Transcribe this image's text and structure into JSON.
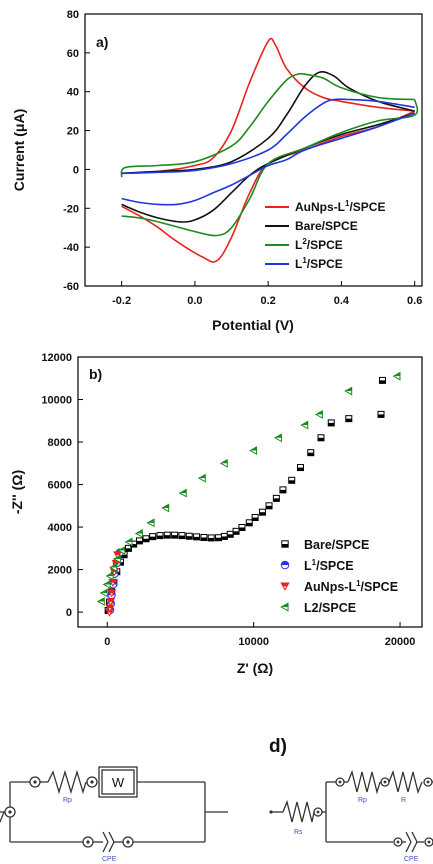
{
  "chart_data": [
    {
      "type": "line",
      "panel_label": "a)",
      "xlabel": "Potential (V)",
      "ylabel": "Current (μA)",
      "xlim": [
        -0.3,
        0.62
      ],
      "ylim": [
        -60,
        80
      ],
      "xticks": [
        "-0.2",
        "0.0",
        "0.2",
        "0.4",
        "0.6"
      ],
      "xtick_values": [
        -0.2,
        0.0,
        0.2,
        0.4,
        0.6
      ],
      "yticks": [
        "-60",
        "-40",
        "-20",
        "0",
        "20",
        "40",
        "60",
        "80"
      ],
      "ytick_values": [
        -60,
        -40,
        -20,
        0,
        20,
        40,
        60,
        80
      ],
      "legend_position": "lower-right",
      "series": [
        {
          "name": "AuNps-L",
          "name_sup": "1",
          "name_suffix": "/SPCE",
          "color": "#e8231f",
          "forward": [
            [
              -0.2,
              -2
            ],
            [
              -0.1,
              -1
            ],
            [
              0.0,
              2
            ],
            [
              0.05,
              6
            ],
            [
              0.1,
              20
            ],
            [
              0.15,
              45
            ],
            [
              0.2,
              66
            ],
            [
              0.22,
              64
            ],
            [
              0.25,
              52
            ],
            [
              0.3,
              42
            ],
            [
              0.35,
              37
            ],
            [
              0.4,
              35
            ],
            [
              0.5,
              32
            ],
            [
              0.6,
              30
            ]
          ],
          "reverse": [
            [
              0.6,
              30
            ],
            [
              0.5,
              22
            ],
            [
              0.4,
              17
            ],
            [
              0.3,
              10
            ],
            [
              0.2,
              3
            ],
            [
              0.15,
              -12
            ],
            [
              0.1,
              -35
            ],
            [
              0.06,
              -47
            ],
            [
              0.02,
              -45
            ],
            [
              -0.05,
              -37
            ],
            [
              -0.1,
              -30
            ],
            [
              -0.15,
              -24
            ],
            [
              -0.2,
              -19
            ]
          ]
        },
        {
          "name": "Bare/SPCE",
          "color": "#111111",
          "forward": [
            [
              -0.2,
              -2
            ],
            [
              -0.1,
              -1
            ],
            [
              0.0,
              0
            ],
            [
              0.1,
              4
            ],
            [
              0.2,
              16
            ],
            [
              0.25,
              28
            ],
            [
              0.3,
              43
            ],
            [
              0.34,
              50
            ],
            [
              0.38,
              48
            ],
            [
              0.42,
              42
            ],
            [
              0.5,
              35
            ],
            [
              0.6,
              30
            ]
          ],
          "reverse": [
            [
              0.6,
              29
            ],
            [
              0.5,
              23
            ],
            [
              0.4,
              18
            ],
            [
              0.3,
              11
            ],
            [
              0.2,
              3
            ],
            [
              0.15,
              -3
            ],
            [
              0.1,
              -12
            ],
            [
              0.05,
              -21
            ],
            [
              0.0,
              -26
            ],
            [
              -0.04,
              -27
            ],
            [
              -0.1,
              -25
            ],
            [
              -0.15,
              -22
            ],
            [
              -0.2,
              -18
            ]
          ]
        },
        {
          "name": "L",
          "name_sup": "2",
          "name_suffix": "/SPCE",
          "color": "#1f8a1f",
          "forward": [
            [
              -0.2,
              -4
            ],
            [
              -0.19,
              1
            ],
            [
              -0.1,
              2
            ],
            [
              0.0,
              4
            ],
            [
              0.1,
              12
            ],
            [
              0.15,
              22
            ],
            [
              0.2,
              35
            ],
            [
              0.25,
              46
            ],
            [
              0.28,
              49
            ],
            [
              0.3,
              49
            ],
            [
              0.35,
              47
            ],
            [
              0.4,
              42
            ],
            [
              0.5,
              37
            ],
            [
              0.6,
              36
            ]
          ],
          "reverse": [
            [
              0.6,
              36
            ],
            [
              0.6,
              28
            ],
            [
              0.5,
              25
            ],
            [
              0.4,
              19
            ],
            [
              0.3,
              11
            ],
            [
              0.2,
              3
            ],
            [
              0.15,
              -15
            ],
            [
              0.1,
              -30
            ],
            [
              0.06,
              -34
            ],
            [
              0.0,
              -32
            ],
            [
              -0.1,
              -27
            ],
            [
              -0.15,
              -25
            ],
            [
              -0.2,
              -24
            ]
          ]
        },
        {
          "name": "L",
          "name_sup": "1",
          "name_suffix": "/SPCE",
          "color": "#2035e0",
          "forward": [
            [
              -0.2,
              -2
            ],
            [
              -0.1,
              -1.5
            ],
            [
              0.0,
              -0.5
            ],
            [
              0.1,
              3
            ],
            [
              0.2,
              10
            ],
            [
              0.25,
              18
            ],
            [
              0.3,
              27
            ],
            [
              0.35,
              34
            ],
            [
              0.38,
              36
            ],
            [
              0.42,
              36
            ],
            [
              0.5,
              35
            ],
            [
              0.6,
              32
            ]
          ],
          "reverse": [
            [
              0.6,
              29
            ],
            [
              0.5,
              22
            ],
            [
              0.4,
              16
            ],
            [
              0.3,
              10
            ],
            [
              0.25,
              5
            ],
            [
              0.2,
              2
            ],
            [
              0.15,
              -3
            ],
            [
              0.1,
              -8
            ],
            [
              0.05,
              -12
            ],
            [
              0.0,
              -16
            ],
            [
              -0.05,
              -18
            ],
            [
              -0.1,
              -18
            ],
            [
              -0.15,
              -17
            ],
            [
              -0.2,
              -15
            ]
          ]
        }
      ]
    },
    {
      "type": "scatter",
      "panel_label": "b)",
      "xlabel": "Z' (Ω)",
      "ylabel": "-Z'' (Ω)",
      "xlim": [
        -2000,
        21500
      ],
      "ylim": [
        -700,
        12000
      ],
      "xticks": [
        "0",
        "10000",
        "20000"
      ],
      "xtick_values": [
        0,
        10000,
        20000
      ],
      "yticks": [
        "0",
        "2000",
        "4000",
        "6000",
        "8000",
        "10000",
        "12000"
      ],
      "ytick_values": [
        0,
        2000,
        4000,
        6000,
        8000,
        10000,
        12000
      ],
      "legend_position": "lower-right",
      "series": [
        {
          "name": "Bare/SPCE",
          "marker": "half-square",
          "color": "#000000",
          "points": [
            [
              60,
              80
            ],
            [
              150,
              450
            ],
            [
              300,
              950
            ],
            [
              450,
              1400
            ],
            [
              650,
              1900
            ],
            [
              900,
              2350
            ],
            [
              1150,
              2700
            ],
            [
              1450,
              3000
            ],
            [
              1800,
              3200
            ],
            [
              2200,
              3350
            ],
            [
              2650,
              3450
            ],
            [
              3100,
              3550
            ],
            [
              3600,
              3600
            ],
            [
              4100,
              3620
            ],
            [
              4600,
              3620
            ],
            [
              5100,
              3600
            ],
            [
              5600,
              3570
            ],
            [
              6100,
              3540
            ],
            [
              6600,
              3510
            ],
            [
              7100,
              3490
            ],
            [
              7600,
              3500
            ],
            [
              8000,
              3560
            ],
            [
              8400,
              3660
            ],
            [
              8800,
              3800
            ],
            [
              9200,
              3980
            ],
            [
              9700,
              4200
            ],
            [
              10100,
              4450
            ],
            [
              10600,
              4700
            ],
            [
              11050,
              5000
            ],
            [
              11550,
              5350
            ],
            [
              12000,
              5750
            ],
            [
              12600,
              6200
            ],
            [
              13200,
              6800
            ],
            [
              13900,
              7500
            ],
            [
              14600,
              8200
            ],
            [
              15300,
              8900
            ],
            [
              16500,
              9100
            ],
            [
              18700,
              9300
            ],
            [
              18800,
              10900
            ]
          ]
        },
        {
          "name": "L",
          "name_sup": "1",
          "name_suffix": "/SPCE",
          "marker": "half-circle",
          "color": "#2035e0",
          "points": [
            [
              200,
              100
            ],
            [
              250,
              400
            ],
            [
              300,
              800
            ],
            [
              400,
              1300
            ],
            [
              500,
              1800
            ],
            [
              650,
              2300
            ],
            [
              850,
              2800
            ]
          ]
        },
        {
          "name": "AuNps-L",
          "name_sup": "1",
          "name_suffix": "/SPCE",
          "marker": "half-triangle-down",
          "color": "#e8231f",
          "points": [
            [
              150,
              0
            ],
            [
              180,
              200
            ],
            [
              230,
              500
            ],
            [
              300,
              900
            ],
            [
              380,
              1400
            ],
            [
              480,
              1900
            ],
            [
              600,
              2300
            ],
            [
              700,
              2700
            ]
          ]
        },
        {
          "name": "L2/SPCE",
          "marker": "half-triangle-left",
          "color": "#1f8a1f",
          "points": [
            [
              -400,
              500
            ],
            [
              -200,
              900
            ],
            [
              0,
              1300
            ],
            [
              200,
              1700
            ],
            [
              450,
              2100
            ],
            [
              700,
              2500
            ],
            [
              1000,
              2900
            ],
            [
              1500,
              3300
            ],
            [
              2200,
              3700
            ],
            [
              3000,
              4200
            ],
            [
              4000,
              4900
            ],
            [
              5200,
              5600
            ],
            [
              6500,
              6300
            ],
            [
              8000,
              7000
            ],
            [
              10000,
              7600
            ],
            [
              11700,
              8200
            ],
            [
              13500,
              8800
            ],
            [
              14500,
              9300
            ],
            [
              16500,
              10400
            ],
            [
              19800,
              11100
            ]
          ]
        }
      ]
    }
  ],
  "circuits": {
    "c": {
      "rp_label": "Rp",
      "w_label": "W",
      "cpe_label": "CPE"
    },
    "d": {
      "panel_label": "d)",
      "rs_label": "Rs",
      "rp_label": "Rp",
      "r_label": "R",
      "cpe_label": "CPE"
    }
  }
}
